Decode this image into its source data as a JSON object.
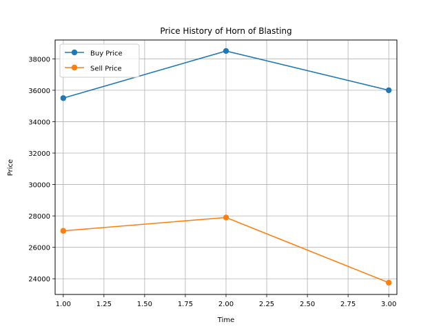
{
  "chart_data": {
    "type": "line",
    "title": "Price History of Horn of Blasting",
    "xlabel": "Time",
    "ylabel": "Price",
    "x": [
      1,
      2,
      3
    ],
    "xlim": [
      0.95,
      3.05
    ],
    "ylim": [
      23000,
      39200
    ],
    "xticks": [
      1.0,
      1.25,
      1.5,
      1.75,
      2.0,
      2.25,
      2.5,
      2.75,
      3.0
    ],
    "xtick_labels": [
      "1.00",
      "1.25",
      "1.50",
      "1.75",
      "2.00",
      "2.25",
      "2.50",
      "2.75",
      "3.00"
    ],
    "yticks": [
      24000,
      26000,
      28000,
      30000,
      32000,
      34000,
      36000,
      38000
    ],
    "ytick_labels": [
      "24000",
      "26000",
      "28000",
      "30000",
      "32000",
      "34000",
      "36000",
      "38000"
    ],
    "grid": true,
    "legend_position": "top-left",
    "series": [
      {
        "name": "Buy Price",
        "color": "#1f77b4",
        "values": [
          35500,
          38500,
          36000
        ]
      },
      {
        "name": "Sell Price",
        "color": "#ff7f0e",
        "values": [
          27050,
          27900,
          23750
        ]
      }
    ]
  }
}
